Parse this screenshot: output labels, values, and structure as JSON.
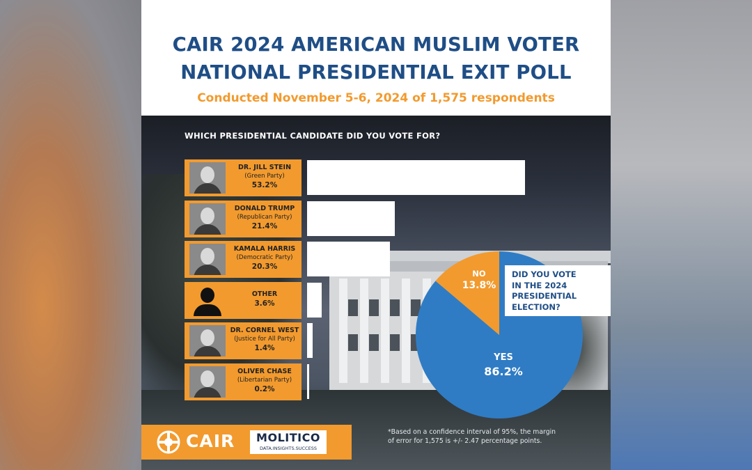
{
  "header": {
    "title_line1": "CAIR 2024 AMERICAN MUSLIM VOTER",
    "title_line2": "NATIONAL PRESIDENTIAL EXIT POLL",
    "subtitle": "Conducted November 5-6, 2024 of 1,575 respondents"
  },
  "colors": {
    "navy": "#1f4e86",
    "orange": "#f29a2e",
    "blue": "#2f7cc4",
    "white": "#ffffff"
  },
  "chart_data": [
    {
      "type": "bar",
      "title": "WHICH PRESIDENTIAL CANDIDATE DID YOU VOTE FOR?",
      "orientation": "horizontal",
      "categories": [
        {
          "name": "DR. JILL STEIN",
          "party": "(Green Party)",
          "label": "53.2%"
        },
        {
          "name": "DONALD TRUMP",
          "party": "(Republican Party)",
          "label": "21.4%"
        },
        {
          "name": "KAMALA HARRIS",
          "party": "(Democratic Party)",
          "label": "20.3%"
        },
        {
          "name": "OTHER",
          "party": "",
          "label": "3.6%"
        },
        {
          "name": "DR. CORNEL WEST",
          "party": "(Justice for All Party)",
          "label": "1.4%"
        },
        {
          "name": "OLIVER CHASE",
          "party": "(Libertarian Party)",
          "label": "0.2%"
        }
      ],
      "values": [
        53.2,
        21.4,
        20.3,
        3.6,
        1.4,
        0.2
      ],
      "xlim": [
        0,
        53.2
      ]
    },
    {
      "type": "pie",
      "title": "DID YOU VOTE IN THE 2024 PRESIDENTIAL ELECTION?",
      "title_lines": [
        "DID YOU VOTE",
        "IN THE 2024",
        "PRESIDENTIAL",
        "ELECTION?"
      ],
      "slices": [
        {
          "label": "YES",
          "value": 86.2,
          "value_label": "86.2%",
          "color": "#2f7cc4"
        },
        {
          "label": "NO",
          "value": 13.8,
          "value_label": "13.8%",
          "color": "#f29a2e"
        }
      ]
    }
  ],
  "footer": {
    "cair_logo_text": "CAIR",
    "molitico_text": "MOLITICO",
    "molitico_tagline": "DATA.INSIGHTS.SUCCESS",
    "note_line1": "*Based on a confidence interval of 95%, the margin",
    "note_line2": "of error for 1,575 is +/- 2.47 percentage points."
  },
  "icons": [
    "cair-crescent-logo-icon",
    "person-silhouette-icon"
  ]
}
